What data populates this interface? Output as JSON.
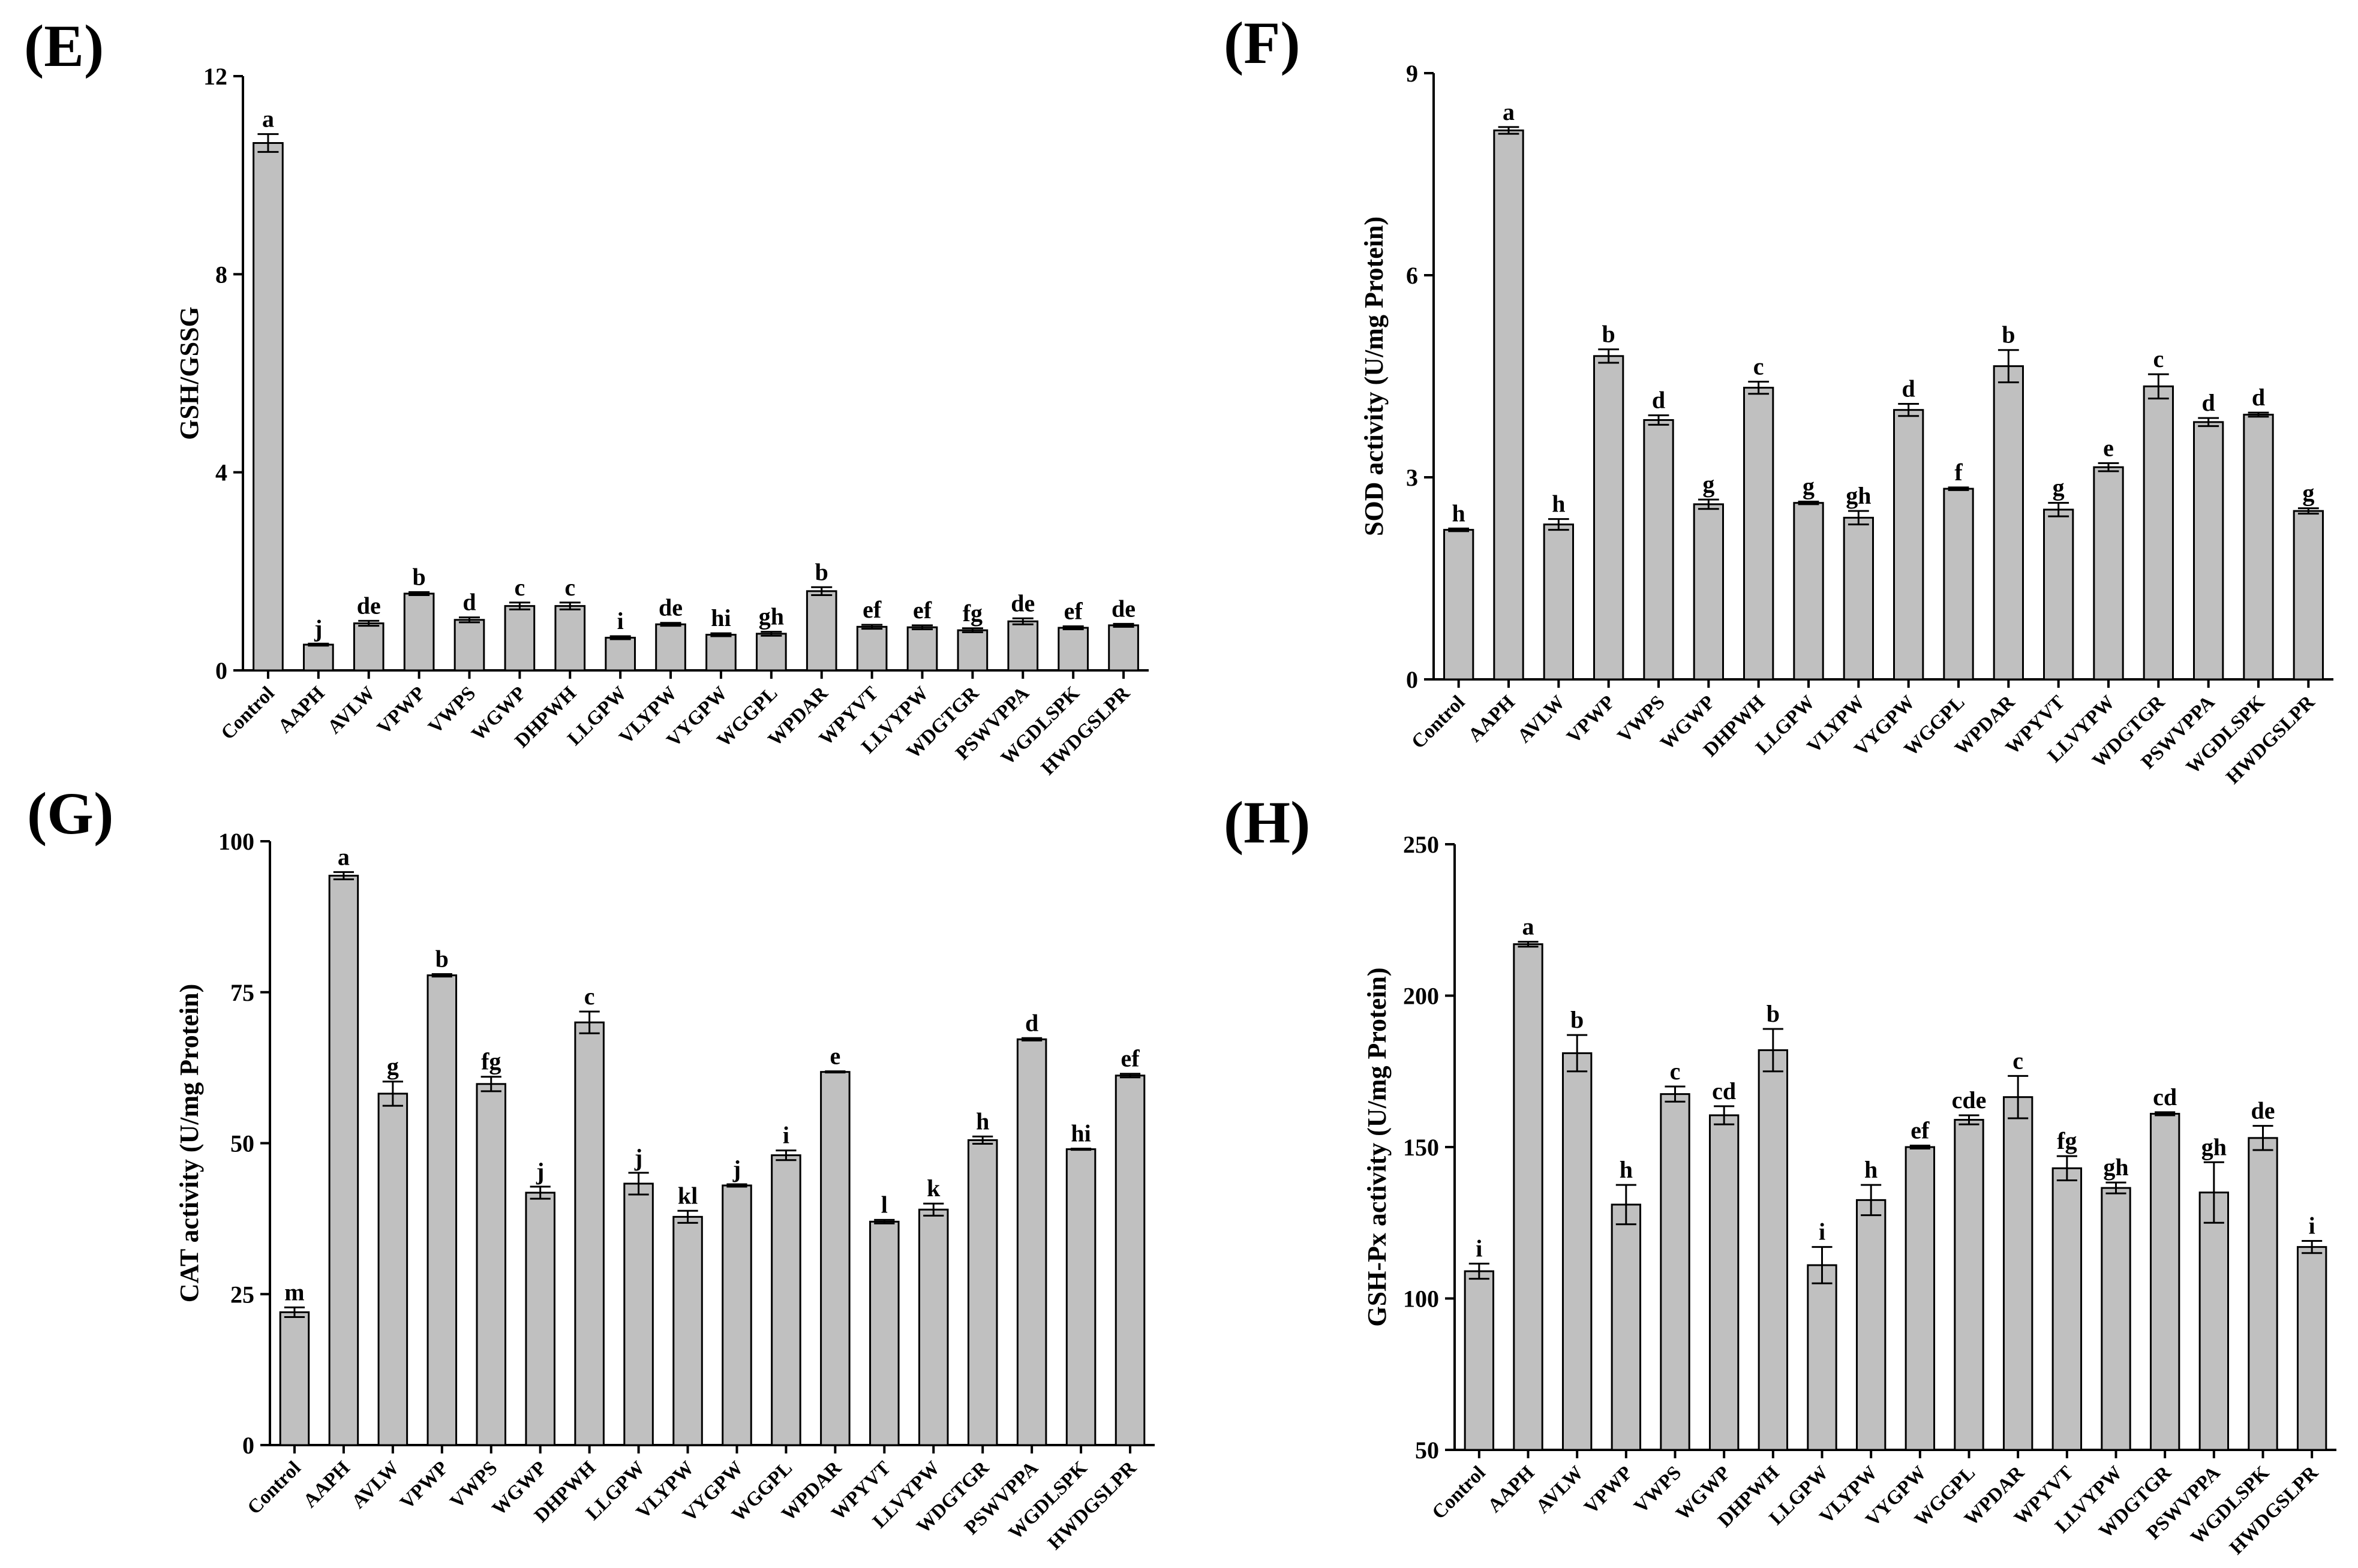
{
  "chart_data": [
    {
      "id": "E",
      "type": "bar",
      "panel_label": "(E)",
      "ylabel": "GSH/GSSG",
      "ylim": [
        0,
        12
      ],
      "yticks": [
        "0",
        "4",
        "8",
        "12"
      ],
      "categories": [
        "Control",
        "AAPH",
        "AVLW",
        "VPWP",
        "VWPS",
        "WGWP",
        "DHPWH",
        "LLGPW",
        "VLYPW",
        "VYGPW",
        "WGGPL",
        "WPDAR",
        "WPYVT",
        "LLVYPW",
        "WDGTGR",
        "PSWVPPA",
        "WGDLSPK",
        "HWDGSLPR"
      ],
      "values": [
        10.65,
        0.52,
        0.95,
        1.55,
        1.02,
        1.3,
        1.3,
        0.66,
        0.93,
        0.72,
        0.74,
        1.6,
        0.88,
        0.87,
        0.81,
        0.99,
        0.86,
        0.91
      ],
      "errors": [
        0.18,
        0.02,
        0.05,
        0.03,
        0.05,
        0.07,
        0.07,
        0.03,
        0.03,
        0.03,
        0.04,
        0.08,
        0.04,
        0.04,
        0.04,
        0.06,
        0.03,
        0.03
      ],
      "letters": [
        "a",
        "j",
        "de",
        "b",
        "d",
        "c",
        "c",
        "i",
        "de",
        "hi",
        "gh",
        "b",
        "ef",
        "ef",
        "fg",
        "de",
        "ef",
        "de"
      ]
    },
    {
      "id": "F",
      "type": "bar",
      "panel_label": "(F)",
      "ylabel": "SOD activity (U/mg Protein)",
      "ylim": [
        0,
        9
      ],
      "yticks": [
        "0",
        "3",
        "6",
        "9"
      ],
      "categories": [
        "Control",
        "AAPH",
        "AVLW",
        "VPWP",
        "VWPS",
        "WGWP",
        "DHPWH",
        "LLGPW",
        "VLYPW",
        "VYGPW",
        "WGGPL",
        "WPDAR",
        "WPYVT",
        "LLVYPW",
        "WDGTGR",
        "PSWVPPA",
        "WGDLSPK",
        "HWDGSLPR"
      ],
      "values": [
        2.22,
        8.15,
        2.3,
        4.8,
        3.85,
        2.6,
        4.33,
        2.62,
        2.4,
        4.0,
        2.83,
        4.65,
        2.52,
        3.15,
        4.35,
        3.82,
        3.93,
        2.5
      ],
      "errors": [
        0.02,
        0.05,
        0.08,
        0.1,
        0.07,
        0.07,
        0.09,
        0.02,
        0.1,
        0.09,
        0.02,
        0.24,
        0.1,
        0.06,
        0.18,
        0.06,
        0.03,
        0.04
      ],
      "letters": [
        "h",
        "a",
        "h",
        "b",
        "d",
        "g",
        "c",
        "g",
        "gh",
        "d",
        "f",
        "b",
        "g",
        "e",
        "c",
        "d",
        "d",
        "g"
      ]
    },
    {
      "id": "G",
      "type": "bar",
      "panel_label": "(G)",
      "ylabel": "CAT activity (U/mg Protein)",
      "ylim": [
        0,
        100
      ],
      "yticks": [
        "0",
        "25",
        "50",
        "75",
        "100"
      ],
      "categories": [
        "Control",
        "AAPH",
        "AVLW",
        "VPWP",
        "VWPS",
        "WGWP",
        "DHPWH",
        "LLGPW",
        "VLYPW",
        "VYGPW",
        "WGGPL",
        "WPDAR",
        "WPYVT",
        "LLVYPW",
        "WDGTGR",
        "PSWVPPA",
        "WGDLSPK",
        "HWDGSLPR"
      ],
      "values": [
        22.0,
        94.3,
        58.2,
        77.8,
        59.8,
        41.8,
        70.0,
        43.3,
        37.8,
        43.0,
        48.0,
        61.8,
        37.0,
        39.0,
        50.5,
        67.2,
        49.0,
        61.2
      ],
      "errors": [
        0.8,
        0.6,
        2.0,
        0.2,
        1.2,
        1.0,
        1.8,
        1.8,
        1.0,
        0.2,
        0.8,
        0.1,
        0.3,
        1.0,
        0.6,
        0.2,
        0.1,
        0.3
      ],
      "letters": [
        "m",
        "a",
        "g",
        "b",
        "fg",
        "j",
        "c",
        "j",
        "kl",
        "j",
        "i",
        "e",
        "l",
        "k",
        "h",
        "d",
        "hi",
        "ef"
      ]
    },
    {
      "id": "H",
      "type": "bar",
      "panel_label": "(H)",
      "ylabel": "GSH-Px activity (U/mg Protein)",
      "ylim": [
        50,
        250
      ],
      "yticks": [
        "50",
        "100",
        "150",
        "200",
        "250"
      ],
      "categories": [
        "Control",
        "AAPH",
        "AVLW",
        "VPWP",
        "VWPS",
        "WGWP",
        "DHPWH",
        "LLGPW",
        "VLYPW",
        "VYGPW",
        "WGGPL",
        "WPDAR",
        "WPYVT",
        "LLVYPW",
        "WDGTGR",
        "PSWVPPA",
        "WGDLSPK",
        "HWDGSLPR"
      ],
      "values": [
        109.0,
        217.0,
        181.0,
        131.0,
        167.5,
        160.5,
        182.0,
        111.0,
        132.5,
        150.0,
        159.0,
        166.5,
        143.0,
        136.5,
        161.0,
        135.0,
        153.0,
        117.0
      ],
      "errors": [
        2.5,
        0.8,
        6.0,
        6.5,
        2.5,
        3.0,
        7.0,
        6.0,
        5.0,
        0.5,
        1.5,
        7.0,
        4.0,
        1.8,
        0.5,
        10.0,
        4.0,
        2.0
      ],
      "letters": [
        "i",
        "a",
        "b",
        "h",
        "c",
        "cd",
        "b",
        "i",
        "h",
        "ef",
        "cde",
        "c",
        "fg",
        "gh",
        "cd",
        "gh",
        "de",
        "i"
      ]
    }
  ]
}
